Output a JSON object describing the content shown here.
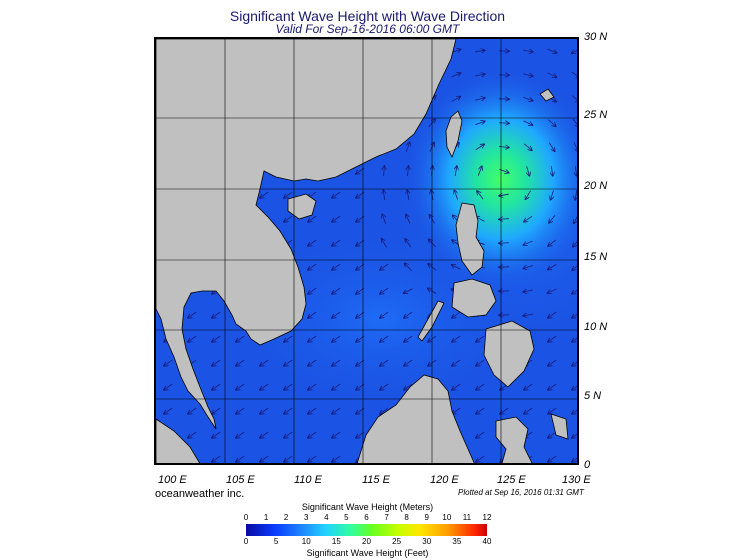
{
  "title": "Significant Wave Height with Wave Direction",
  "subtitle": "Valid For Sep-16-2016 06:00 GMT",
  "lat_labels": [
    "30 N",
    "25 N",
    "20 N",
    "15 N",
    "10 N",
    "5 N",
    "0"
  ],
  "lon_labels": [
    "100 E",
    "105 E",
    "110 E",
    "115 E",
    "120 E",
    "125 E",
    "130 E"
  ],
  "credit": "oceanweather inc.",
  "plotted": "Plotted at Sep 16, 2016 01:31 GMT",
  "colorbar": {
    "meters_label": "Significant Wave Height (Meters)",
    "feet_label": "Significant Wave Height (Feet)",
    "meters_ticks": [
      "0",
      "1",
      "2",
      "3",
      "4",
      "5",
      "6",
      "7",
      "8",
      "9",
      "10",
      "11",
      "12"
    ],
    "feet_ticks": [
      "0",
      "5",
      "10",
      "15",
      "20",
      "25",
      "30",
      "35",
      "40"
    ]
  },
  "colors": {
    "ocean": "#1b54e4",
    "land": "#c0c0c0",
    "peak": "#33ff66"
  }
}
